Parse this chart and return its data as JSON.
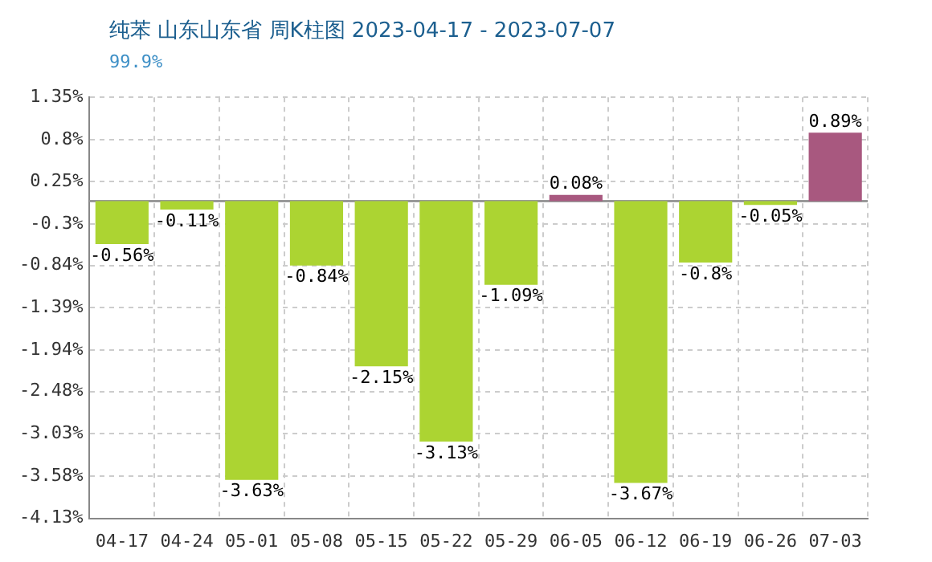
{
  "chart_data": {
    "type": "bar",
    "title": "纯苯 山东山东省 周K柱图 2023-04-17 - 2023-07-07",
    "subtitle": "99.9%",
    "categories": [
      "04-17",
      "04-24",
      "05-01",
      "05-08",
      "05-15",
      "05-22",
      "05-29",
      "06-05",
      "06-12",
      "06-19",
      "06-26",
      "07-03"
    ],
    "values": [
      -0.56,
      -0.11,
      -3.63,
      -0.84,
      -2.15,
      -3.13,
      -1.09,
      0.08,
      -3.67,
      -0.8,
      -0.05,
      0.89
    ],
    "colors": [
      "#acd432",
      "#acd432",
      "#acd432",
      "#acd432",
      "#acd432",
      "#acd432",
      "#acd432",
      "#a8587f",
      "#acd432",
      "#acd432",
      "#acd432",
      "#a8587f"
    ],
    "value_labels": [
      "-0.56%",
      "-0.11%",
      "-3.63%",
      "-0.84%",
      "-2.15%",
      "-3.13%",
      "-1.09%",
      "0.08%",
      "-3.67%",
      "-0.8%",
      "-0.05%",
      "0.89%"
    ],
    "ylim": [
      -4.13,
      1.35
    ],
    "yticks": [
      {
        "value": 1.35,
        "label": "1.35%"
      },
      {
        "value": 0.8,
        "label": "0.8%"
      },
      {
        "value": 0.25,
        "label": "0.25%"
      },
      {
        "value": -0.3,
        "label": "-0.3%"
      },
      {
        "value": -0.84,
        "label": "-0.84%"
      },
      {
        "value": -1.39,
        "label": "-1.39%"
      },
      {
        "value": -1.94,
        "label": "-1.94%"
      },
      {
        "value": -2.48,
        "label": "-2.48%"
      },
      {
        "value": -3.03,
        "label": "-3.03%"
      },
      {
        "value": -3.58,
        "label": "-3.58%"
      },
      {
        "value": -4.13,
        "label": "-4.13%"
      }
    ],
    "grid": true,
    "legend": false
  }
}
